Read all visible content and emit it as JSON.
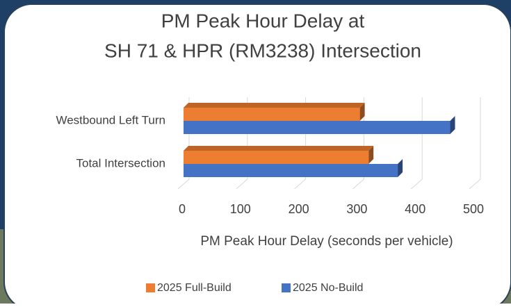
{
  "chart_data": {
    "type": "bar3d-horizontal",
    "title": [
      "PM Peak Hour Delay at",
      "SH 71 & HPR (RM3238) Intersection"
    ],
    "x_label": "PM Peak Hour Delay (seconds per vehicle)",
    "categories": [
      "Westbound Left Turn",
      "Total Intersection"
    ],
    "series": [
      {
        "name": "2025 Full-Build",
        "color": "#ed7d31",
        "values": [
          305,
          320
        ]
      },
      {
        "name": "2025 No-Build",
        "color": "#4472c4",
        "values": [
          460,
          370
        ]
      }
    ],
    "xlim": [
      0,
      500
    ],
    "xticks": [
      0,
      100,
      200,
      300,
      400,
      500
    ],
    "grid": true,
    "legend": "bottom"
  }
}
